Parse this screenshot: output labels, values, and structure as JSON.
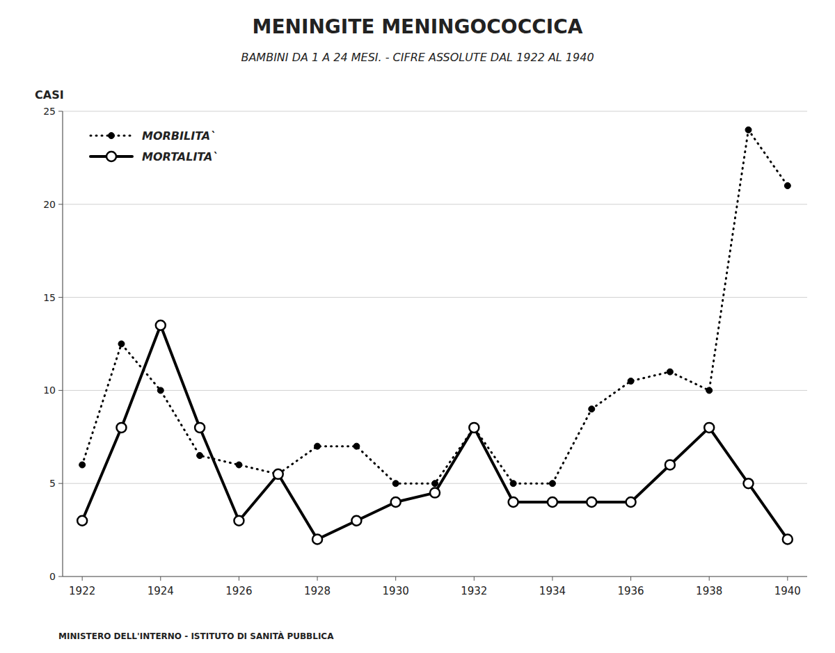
{
  "chart_data": {
    "type": "line",
    "title": "MENINGITE MENINGOCOCCICA",
    "subtitle": "BAMBINI DA 1 A 24 MESI.  -  CIFRE ASSOLUTE DAL 1922 AL 1940",
    "ylabel": "CASI",
    "annotations": [
      "MINISTERO DELL'INTERNO - ISTITUTO DI SANITÀ PUBBLICA"
    ],
    "x": [
      1922,
      1923,
      1924,
      1925,
      1926,
      1927,
      1928,
      1929,
      1930,
      1931,
      1932,
      1933,
      1934,
      1935,
      1936,
      1937,
      1938,
      1939,
      1940
    ],
    "series": [
      {
        "name": "MORBILITA`",
        "color": "#000000",
        "line_style": "dotted",
        "marker": "circle",
        "values": [
          6,
          12.5,
          10,
          6.5,
          6,
          5.5,
          7,
          7,
          5,
          5,
          8,
          5,
          5,
          9,
          10.5,
          11,
          10,
          24,
          21
        ]
      },
      {
        "name": "MORTALITA`",
        "color": "#000000",
        "line_style": "solid",
        "marker": "open-circle",
        "values": [
          3,
          8,
          13.5,
          8,
          3,
          5.5,
          2,
          3,
          4,
          4.5,
          8,
          4,
          4,
          4,
          4,
          6,
          8,
          5,
          2
        ]
      }
    ],
    "xlim": [
      1921.5,
      1940.5
    ],
    "xticks": [
      1922,
      1924,
      1926,
      1928,
      1930,
      1932,
      1934,
      1936,
      1938,
      1940
    ],
    "ylim": [
      0,
      25
    ],
    "yticks": [
      0,
      5,
      10,
      15,
      20,
      25
    ],
    "grid": "y",
    "legend": "upper left"
  }
}
